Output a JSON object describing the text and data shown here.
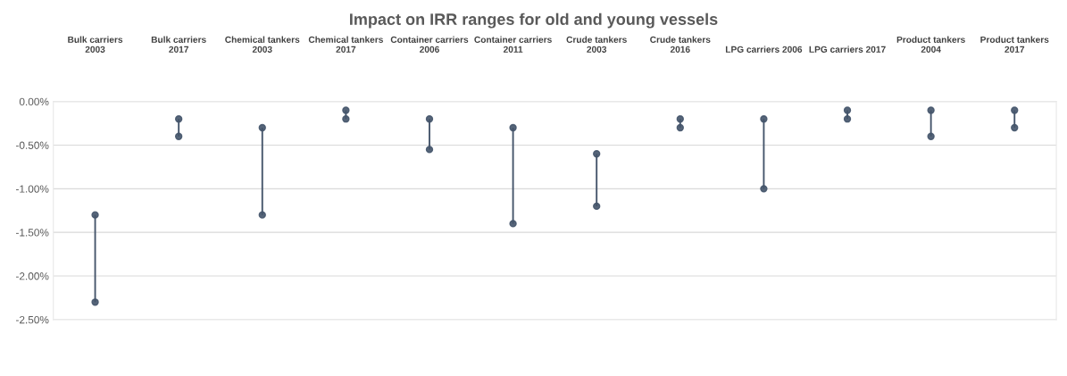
{
  "chart_data": {
    "type": "bar",
    "title": "Impact on IRR ranges for old and young vessels",
    "categories": [
      "Bulk carriers\n2003",
      "Bulk carriers\n2017",
      "Chemical tankers\n2003",
      "Chemical tankers\n2017",
      "Container carriers\n2006",
      "Container carriers\n2011",
      "Crude tankers\n2003",
      "Crude tankers\n2016",
      "LPG carriers 2006",
      "LPG carriers 2017",
      "Product tankers\n2004",
      "Product tankers\n2017"
    ],
    "base": [
      -2.3,
      -0.4,
      -1.3,
      -0.2,
      -0.55,
      -1.4,
      -1.2,
      -0.3,
      -1.0,
      -0.2,
      -0.4,
      -0.3
    ],
    "values": [
      1.0,
      0.2,
      1.0,
      0.1,
      0.35,
      1.1,
      0.6,
      0.1,
      0.8,
      0.1,
      0.3,
      0.2
    ],
    "color": "#44546a",
    "marker": "circle",
    "ylim": [
      -2.5,
      0.0
    ],
    "yticks": [
      {
        "value": 0.0,
        "label": "0.00%"
      },
      {
        "value": -0.5,
        "label": "-0.50%"
      },
      {
        "value": -1.0,
        "label": "-1.00%"
      },
      {
        "value": -1.5,
        "label": "-1.50%"
      },
      {
        "value": -2.0,
        "label": "-2.00%"
      },
      {
        "value": -2.5,
        "label": "-2.50%"
      }
    ],
    "grid": "y"
  }
}
